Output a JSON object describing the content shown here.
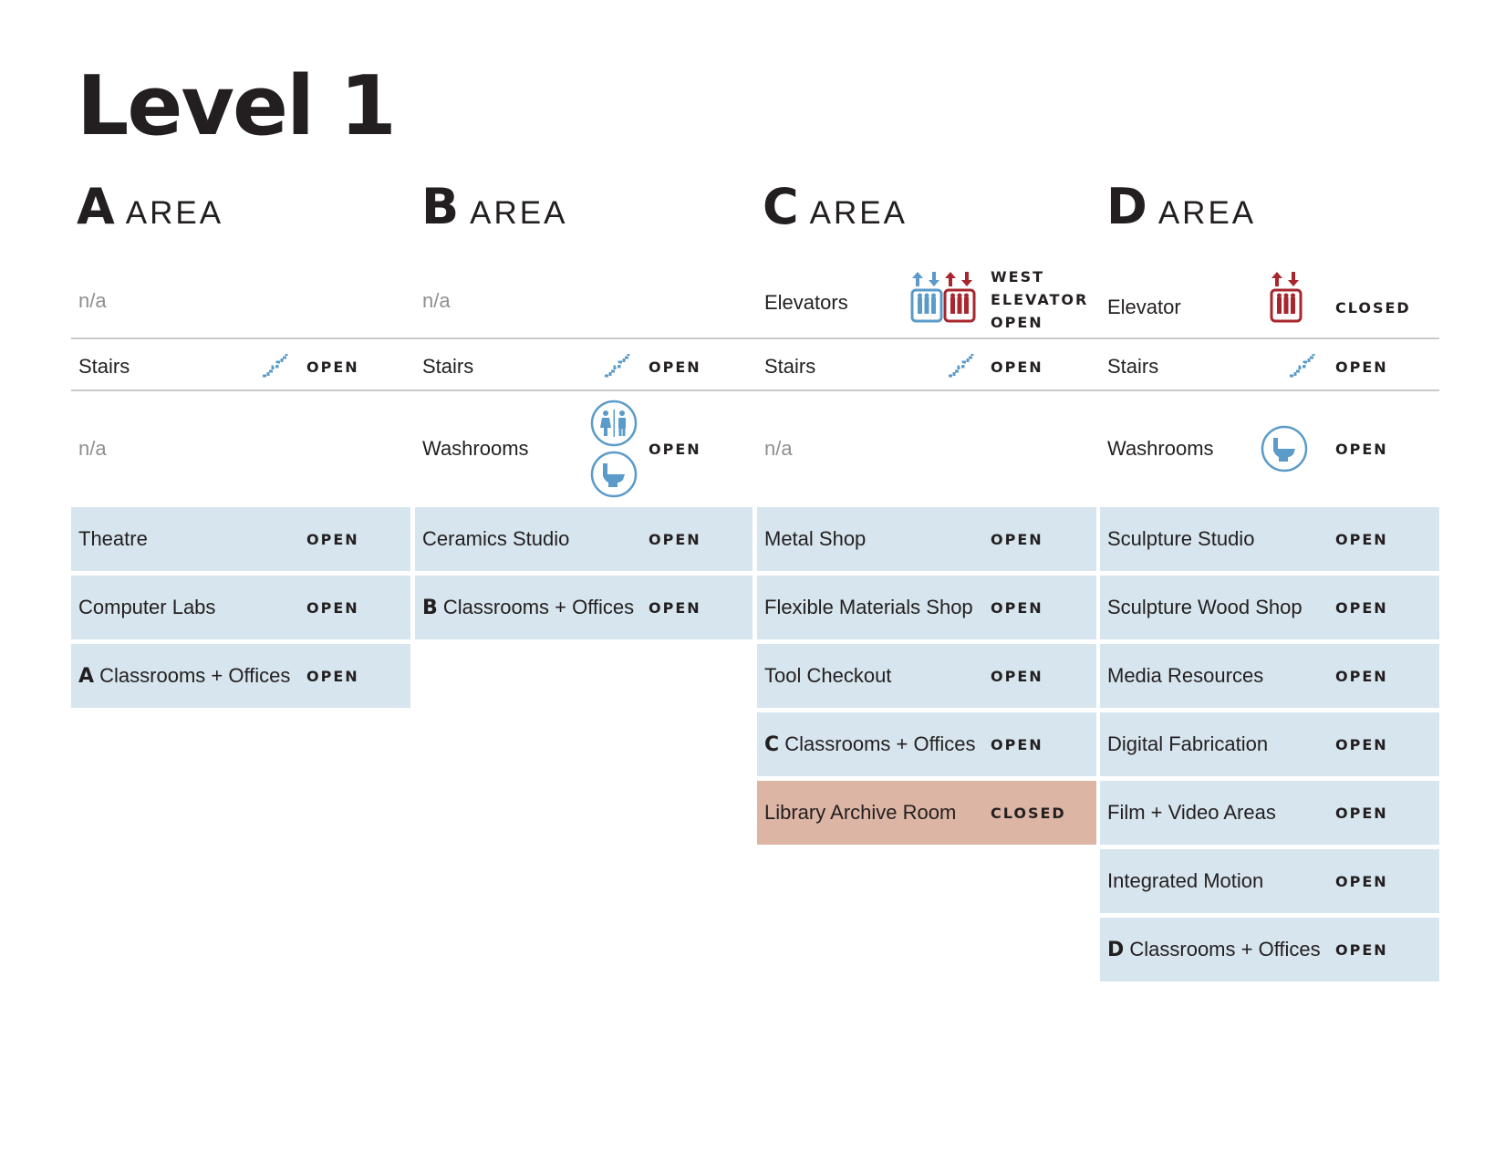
{
  "page": {
    "title": "Level 1"
  },
  "colors": {
    "blue": "#5a9bc9",
    "red": "#a8262e",
    "room_open": "#d7e6ee",
    "room_closed": "#ddb5a4",
    "na_text": "#8f8f8f"
  },
  "areas": [
    {
      "letter": "A",
      "word": "AREA",
      "elevator": {
        "label": "n/a"
      },
      "stairs": {
        "label": "Stairs",
        "status": "OPEN",
        "icon": "stairs-icon"
      },
      "washrooms": {
        "label": "n/a"
      },
      "rooms": [
        {
          "prefix": "",
          "label": "Theatre",
          "status": "OPEN"
        },
        {
          "prefix": "",
          "label": "Computer Labs",
          "status": "OPEN"
        },
        {
          "prefix": "A",
          "label": " Classrooms + Offices",
          "status": "OPEN"
        }
      ]
    },
    {
      "letter": "B",
      "word": "AREA",
      "elevator": {
        "label": "n/a"
      },
      "stairs": {
        "label": "Stairs",
        "status": "OPEN",
        "icon": "stairs-icon"
      },
      "washrooms": {
        "label": "Washrooms",
        "status": "OPEN",
        "icons": [
          "all-gender-washroom-icon",
          "toilet-icon"
        ]
      },
      "rooms": [
        {
          "prefix": "",
          "label": "Ceramics Studio",
          "status": "OPEN"
        },
        {
          "prefix": "B",
          "label": " Classrooms + Offices",
          "status": "OPEN"
        }
      ]
    },
    {
      "letter": "C",
      "word": "AREA",
      "elevator": {
        "label": "Elevators",
        "status_lines": [
          "WEST",
          "ELEVATOR",
          "OPEN"
        ],
        "icons": [
          "elevator-open-icon",
          "elevator-closed-icon"
        ]
      },
      "stairs": {
        "label": "Stairs",
        "status": "OPEN",
        "icon": "stairs-icon"
      },
      "washrooms": {
        "label": "n/a"
      },
      "rooms": [
        {
          "prefix": "",
          "label": "Metal Shop",
          "status": "OPEN"
        },
        {
          "prefix": "",
          "label": "Flexible Materials Shop",
          "status": "OPEN"
        },
        {
          "prefix": "",
          "label": "Tool Checkout",
          "status": "OPEN"
        },
        {
          "prefix": "C",
          "label": " Classrooms + Offices",
          "status": "OPEN"
        },
        {
          "prefix": "",
          "label": "Library Archive Room",
          "status": "CLOSED"
        }
      ]
    },
    {
      "letter": "D",
      "word": "AREA",
      "elevator": {
        "label": "Elevator",
        "status": "CLOSED",
        "icons": [
          "elevator-closed-icon"
        ]
      },
      "stairs": {
        "label": "Stairs",
        "status": "OPEN",
        "icon": "stairs-icon"
      },
      "washrooms": {
        "label": "Washrooms",
        "status": "OPEN",
        "icons": [
          "toilet-icon"
        ]
      },
      "rooms": [
        {
          "prefix": "",
          "label": "Sculpture Studio",
          "status": "OPEN"
        },
        {
          "prefix": "",
          "label": "Sculpture Wood Shop",
          "status": "OPEN"
        },
        {
          "prefix": "",
          "label": "Media Resources",
          "status": "OPEN"
        },
        {
          "prefix": "",
          "label": "Digital Fabrication",
          "status": "OPEN"
        },
        {
          "prefix": "",
          "label": "Film + Video Areas",
          "status": "OPEN"
        },
        {
          "prefix": "",
          "label": "Integrated Motion",
          "status": "OPEN"
        },
        {
          "prefix": "D",
          "label": " Classrooms + Offices",
          "status": "OPEN"
        }
      ]
    }
  ]
}
